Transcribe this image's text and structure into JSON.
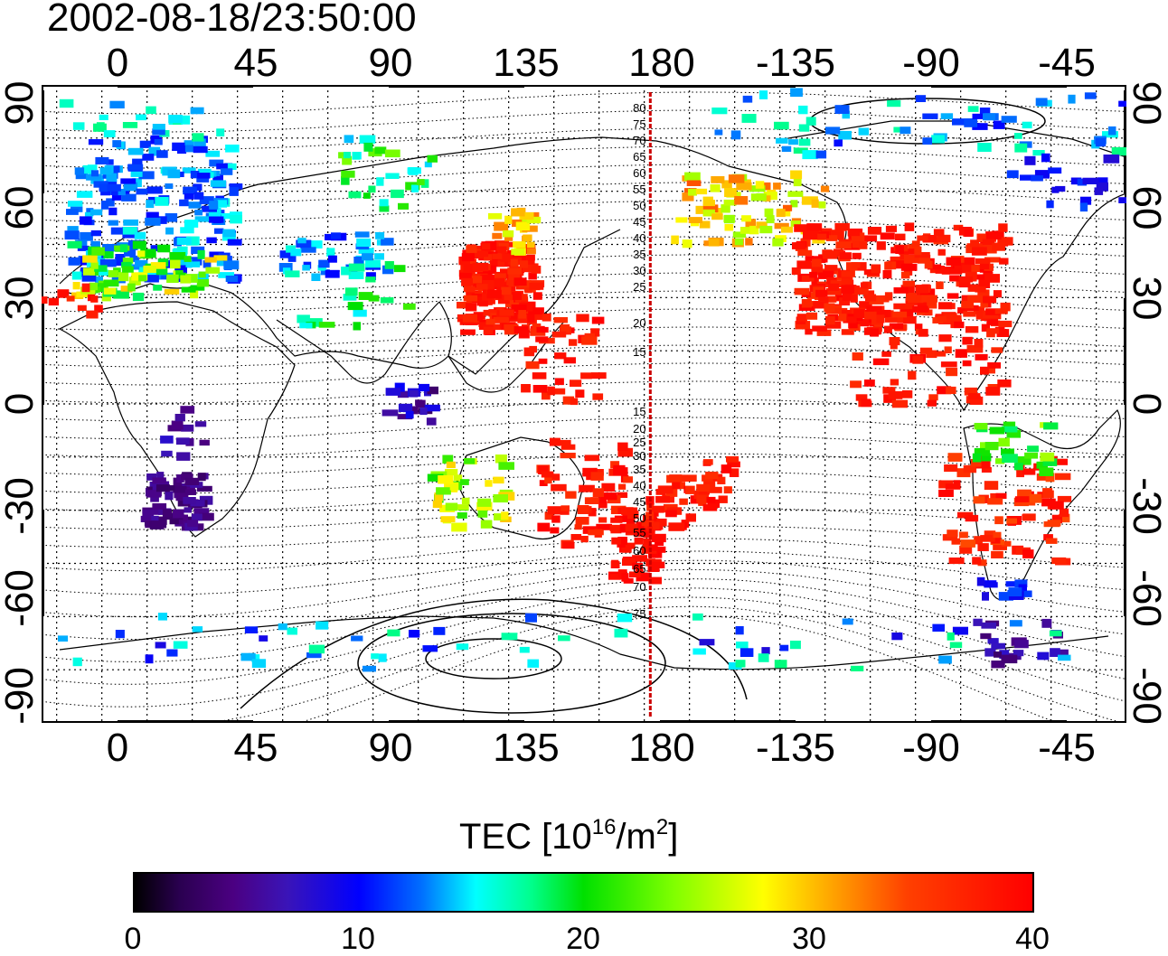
{
  "timestamp": "2002-08-18/23:50:00",
  "lon_labels": [
    "0",
    "45",
    "90",
    "135",
    "180",
    "-135",
    "-90",
    "-45"
  ],
  "lat_labels": [
    "90",
    "60",
    "30",
    "0",
    "-30",
    "-60",
    "-90"
  ],
  "meridian_lat_labels": [
    "80",
    "75",
    "70",
    "65",
    "60",
    "55",
    "50",
    "45",
    "40",
    "35",
    "30",
    "25",
    "20",
    "15",
    "15",
    "20",
    "25",
    "30",
    "35",
    "40",
    "45",
    "50",
    "55",
    "60",
    "65",
    "70",
    "75"
  ],
  "colorbar": {
    "title": "TEC  [10",
    "title_exp": "16",
    "title_mid": "/m",
    "title_exp2": "2",
    "title_end": "]",
    "ticks": [
      "0",
      "10",
      "20",
      "30",
      "40"
    ],
    "min": 0,
    "max": 40
  },
  "colors": {
    "high_tec": "#ff0000",
    "reference_meridian": "#cc0000"
  },
  "map_extent": {
    "lon": [
      -20,
      340
    ],
    "lat": [
      -90,
      90
    ],
    "reference_meridian_lon": 182
  }
}
